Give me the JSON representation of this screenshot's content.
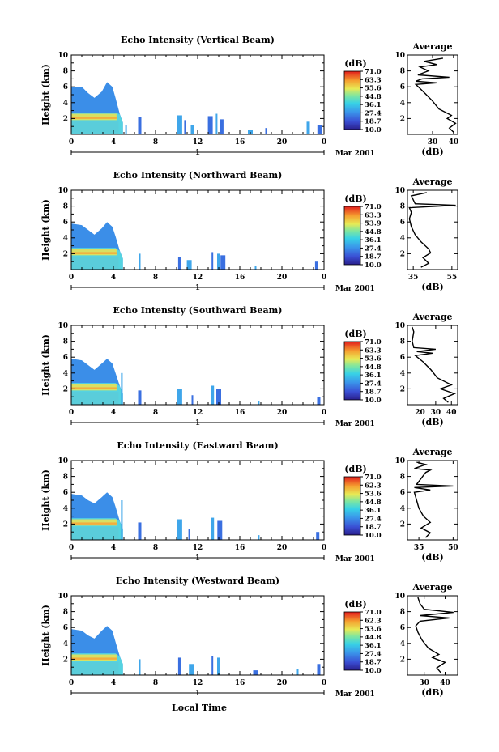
{
  "chart_data": [
    {
      "type": "heatmap",
      "title": "Echo Intensity (Vertical Beam)",
      "ylabel": "Height (km)",
      "xlim": [
        0,
        24
      ],
      "ylim": [
        0,
        10
      ],
      "x_ticks": [
        "0",
        "4",
        "8",
        "12",
        "16",
        "20",
        "0"
      ],
      "y_ticks": [
        "2",
        "4",
        "6",
        "8",
        "10"
      ],
      "date_label": "1",
      "month_label": "Mar 2001",
      "colorbar": {
        "unit": "(dB)",
        "levels": [
          "71.0",
          "63.3",
          "55.6",
          "44.8",
          "36.1",
          "27.4",
          "18.7",
          "10.0"
        ]
      },
      "echo_top_km": [
        {
          "t": 0.0,
          "top": 6.0
        },
        {
          "t": 1.0,
          "top": 6.0
        },
        {
          "t": 1.6,
          "top": 5.2
        },
        {
          "t": 2.2,
          "top": 4.6
        },
        {
          "t": 2.9,
          "top": 5.4
        },
        {
          "t": 3.4,
          "top": 6.6
        },
        {
          "t": 3.9,
          "top": 6.0
        },
        {
          "t": 4.2,
          "top": 4.6
        },
        {
          "t": 4.6,
          "top": 2.6
        },
        {
          "t": 4.9,
          "top": 1.5
        }
      ],
      "scattered_echoes": [
        {
          "t": 5.2,
          "top": 1.2
        },
        {
          "t": 6.5,
          "top": 2.2
        },
        {
          "t": 10.3,
          "top": 2.4
        },
        {
          "t": 10.8,
          "top": 1.8
        },
        {
          "t": 11.5,
          "top": 1.2
        },
        {
          "t": 13.2,
          "top": 2.3
        },
        {
          "t": 13.8,
          "top": 2.6
        },
        {
          "t": 14.3,
          "top": 1.9
        },
        {
          "t": 17.0,
          "top": 0.6
        },
        {
          "t": 18.5,
          "top": 0.8
        },
        {
          "t": 22.5,
          "top": 1.6
        },
        {
          "t": 23.6,
          "top": 1.2
        }
      ],
      "average_profile": {
        "title": "Average",
        "xlabel": "(dB)",
        "x_ticks": [
          "30",
          "40"
        ],
        "xlim": [
          18,
          42
        ],
        "y_ticks": [
          "2",
          "4",
          "6",
          "8",
          "10"
        ],
        "ylim": [
          0,
          10
        ],
        "points": [
          {
            "dB": 40,
            "h": 0.3
          },
          {
            "dB": 38,
            "h": 0.8
          },
          {
            "dB": 41,
            "h": 1.4
          },
          {
            "dB": 37,
            "h": 2.0
          },
          {
            "dB": 39,
            "h": 2.4
          },
          {
            "dB": 33,
            "h": 3.2
          },
          {
            "dB": 30,
            "h": 4.2
          },
          {
            "dB": 27,
            "h": 5.0
          },
          {
            "dB": 24,
            "h": 5.8
          },
          {
            "dB": 22,
            "h": 6.3
          },
          {
            "dB": 32,
            "h": 6.5
          },
          {
            "dB": 22,
            "h": 6.7
          },
          {
            "dB": 25,
            "h": 7.0
          },
          {
            "dB": 38,
            "h": 7.2
          },
          {
            "dB": 23,
            "h": 7.5
          },
          {
            "dB": 28,
            "h": 8.0
          },
          {
            "dB": 24,
            "h": 8.5
          },
          {
            "dB": 32,
            "h": 8.8
          },
          {
            "dB": 26,
            "h": 9.2
          },
          {
            "dB": 35,
            "h": 9.6
          }
        ]
      }
    },
    {
      "type": "heatmap",
      "title": "Echo Intensity (Northward Beam)",
      "ylabel": "Height (km)",
      "xlim": [
        0,
        24
      ],
      "ylim": [
        0,
        10
      ],
      "x_ticks": [
        "0",
        "4",
        "8",
        "12",
        "16",
        "20",
        "0"
      ],
      "y_ticks": [
        "2",
        "4",
        "6",
        "8",
        "10"
      ],
      "date_label": "1",
      "month_label": "Mar 2001",
      "colorbar": {
        "unit": "(dB)",
        "levels": [
          "71.0",
          "63.3",
          "53.9",
          "44.8",
          "36.1",
          "27.4",
          "18.7",
          "10.0"
        ]
      },
      "echo_top_km": [
        {
          "t": 0.0,
          "top": 5.8
        },
        {
          "t": 1.0,
          "top": 5.6
        },
        {
          "t": 1.6,
          "top": 5.0
        },
        {
          "t": 2.2,
          "top": 4.4
        },
        {
          "t": 2.9,
          "top": 5.2
        },
        {
          "t": 3.4,
          "top": 6.0
        },
        {
          "t": 3.9,
          "top": 5.4
        },
        {
          "t": 4.2,
          "top": 4.2
        },
        {
          "t": 4.6,
          "top": 2.4
        },
        {
          "t": 4.9,
          "top": 1.4
        }
      ],
      "scattered_echoes": [
        {
          "t": 6.5,
          "top": 2.0
        },
        {
          "t": 10.3,
          "top": 1.6
        },
        {
          "t": 11.2,
          "top": 1.2
        },
        {
          "t": 13.4,
          "top": 2.2
        },
        {
          "t": 14.0,
          "top": 2.0
        },
        {
          "t": 14.4,
          "top": 1.8
        },
        {
          "t": 17.5,
          "top": 0.5
        },
        {
          "t": 23.3,
          "top": 1.0
        }
      ],
      "average_profile": {
        "title": "Average",
        "xlabel": "(dB)",
        "x_ticks": [
          "35",
          "55"
        ],
        "xlim": [
          32,
          58
        ],
        "y_ticks": [
          "2",
          "4",
          "6",
          "8",
          "10"
        ],
        "ylim": [
          0,
          10
        ],
        "points": [
          {
            "dB": 39,
            "h": 0.3
          },
          {
            "dB": 43,
            "h": 0.8
          },
          {
            "dB": 40,
            "h": 1.5
          },
          {
            "dB": 44,
            "h": 2.1
          },
          {
            "dB": 43,
            "h": 2.6
          },
          {
            "dB": 39,
            "h": 3.5
          },
          {
            "dB": 36,
            "h": 4.4
          },
          {
            "dB": 34,
            "h": 5.4
          },
          {
            "dB": 33,
            "h": 6.4
          },
          {
            "dB": 34,
            "h": 7.2
          },
          {
            "dB": 33,
            "h": 7.8
          },
          {
            "dB": 57,
            "h": 8.1
          },
          {
            "dB": 36,
            "h": 8.3
          },
          {
            "dB": 34,
            "h": 9.3
          },
          {
            "dB": 42,
            "h": 9.7
          }
        ]
      }
    },
    {
      "type": "heatmap",
      "title": "Echo Intensity (Southward Beam)",
      "ylabel": "Height (km)",
      "xlim": [
        0,
        24
      ],
      "ylim": [
        0,
        10
      ],
      "x_ticks": [
        "0",
        "4",
        "8",
        "12",
        "16",
        "20",
        "0"
      ],
      "y_ticks": [
        "2",
        "4",
        "6",
        "8",
        "10"
      ],
      "date_label": "1",
      "month_label": "Mar 2001",
      "colorbar": {
        "unit": "(dB)",
        "levels": [
          "71.0",
          "63.3",
          "53.6",
          "44.8",
          "36.1",
          "27.4",
          "18.7",
          "10.0"
        ]
      },
      "echo_top_km": [
        {
          "t": 0.0,
          "top": 5.8
        },
        {
          "t": 1.0,
          "top": 5.6
        },
        {
          "t": 1.6,
          "top": 5.0
        },
        {
          "t": 2.2,
          "top": 4.4
        },
        {
          "t": 2.9,
          "top": 5.2
        },
        {
          "t": 3.4,
          "top": 5.8
        },
        {
          "t": 3.9,
          "top": 5.2
        },
        {
          "t": 4.2,
          "top": 4.0
        },
        {
          "t": 4.6,
          "top": 2.4
        },
        {
          "t": 4.9,
          "top": 1.4
        }
      ],
      "scattered_echoes": [
        {
          "t": 4.8,
          "top": 4.0
        },
        {
          "t": 6.5,
          "top": 1.8
        },
        {
          "t": 10.3,
          "top": 2.0
        },
        {
          "t": 11.5,
          "top": 1.2
        },
        {
          "t": 13.4,
          "top": 2.4
        },
        {
          "t": 14.0,
          "top": 2.0
        },
        {
          "t": 17.8,
          "top": 0.5
        },
        {
          "t": 23.5,
          "top": 1.0
        }
      ],
      "average_profile": {
        "title": "Average",
        "xlabel": "(dB)",
        "x_ticks": [
          "20",
          "30",
          "40"
        ],
        "xlim": [
          12,
          44
        ],
        "y_ticks": [
          "2",
          "4",
          "6",
          "8",
          "10"
        ],
        "ylim": [
          0,
          10
        ],
        "points": [
          {
            "dB": 38,
            "h": 0.3
          },
          {
            "dB": 35,
            "h": 0.8
          },
          {
            "dB": 42,
            "h": 1.4
          },
          {
            "dB": 33,
            "h": 2.0
          },
          {
            "dB": 40,
            "h": 2.5
          },
          {
            "dB": 31,
            "h": 3.4
          },
          {
            "dB": 27,
            "h": 4.4
          },
          {
            "dB": 22,
            "h": 5.4
          },
          {
            "dB": 17,
            "h": 6.2
          },
          {
            "dB": 28,
            "h": 6.5
          },
          {
            "dB": 18,
            "h": 6.7
          },
          {
            "dB": 30,
            "h": 7.0
          },
          {
            "dB": 16,
            "h": 7.2
          },
          {
            "dB": 15,
            "h": 8.0
          },
          {
            "dB": 16,
            "h": 9.2
          },
          {
            "dB": 15,
            "h": 9.8
          }
        ]
      }
    },
    {
      "type": "heatmap",
      "title": "Echo Intensity (Eastward Beam)",
      "ylabel": "Height (km)",
      "xlim": [
        0,
        24
      ],
      "ylim": [
        0,
        10
      ],
      "x_ticks": [
        "0",
        "4",
        "8",
        "12",
        "16",
        "20",
        "0"
      ],
      "y_ticks": [
        "2",
        "4",
        "6",
        "8",
        "10"
      ],
      "date_label": "1",
      "month_label": "Mar 2001",
      "colorbar": {
        "unit": "(dB)",
        "levels": [
          "71.0",
          "62.3",
          "53.6",
          "44.8",
          "36.1",
          "27.4",
          "18.7",
          "10.0"
        ]
      },
      "echo_top_km": [
        {
          "t": 0.0,
          "top": 5.8
        },
        {
          "t": 1.0,
          "top": 5.6
        },
        {
          "t": 1.6,
          "top": 5.0
        },
        {
          "t": 2.2,
          "top": 4.6
        },
        {
          "t": 2.9,
          "top": 5.4
        },
        {
          "t": 3.4,
          "top": 6.0
        },
        {
          "t": 3.9,
          "top": 5.4
        },
        {
          "t": 4.2,
          "top": 4.2
        },
        {
          "t": 4.6,
          "top": 2.4
        },
        {
          "t": 4.9,
          "top": 1.4
        }
      ],
      "scattered_echoes": [
        {
          "t": 4.8,
          "top": 5.0
        },
        {
          "t": 6.5,
          "top": 2.2
        },
        {
          "t": 10.3,
          "top": 2.6
        },
        {
          "t": 11.2,
          "top": 1.4
        },
        {
          "t": 13.4,
          "top": 2.8
        },
        {
          "t": 14.1,
          "top": 2.4
        },
        {
          "t": 17.8,
          "top": 0.6
        },
        {
          "t": 23.4,
          "top": 1.0
        }
      ],
      "average_profile": {
        "title": "Average",
        "xlabel": "(dB)",
        "x_ticks": [
          "35",
          "50"
        ],
        "xlim": [
          30,
          52
        ],
        "y_ticks": [
          "2",
          "4",
          "6",
          "8",
          "10"
        ],
        "ylim": [
          0,
          10
        ],
        "points": [
          {
            "dB": 38,
            "h": 0.3
          },
          {
            "dB": 40,
            "h": 0.9
          },
          {
            "dB": 36,
            "h": 1.5
          },
          {
            "dB": 40,
            "h": 2.2
          },
          {
            "dB": 37,
            "h": 3.0
          },
          {
            "dB": 35,
            "h": 4.0
          },
          {
            "dB": 34,
            "h": 5.0
          },
          {
            "dB": 33,
            "h": 6.0
          },
          {
            "dB": 40,
            "h": 6.3
          },
          {
            "dB": 33,
            "h": 6.6
          },
          {
            "dB": 50,
            "h": 6.8
          },
          {
            "dB": 34,
            "h": 7.0
          },
          {
            "dB": 38,
            "h": 8.5
          },
          {
            "dB": 40,
            "h": 8.8
          },
          {
            "dB": 33,
            "h": 9.0
          },
          {
            "dB": 38,
            "h": 9.5
          },
          {
            "dB": 34,
            "h": 9.8
          }
        ]
      }
    },
    {
      "type": "heatmap",
      "title": "Echo Intensity (Westward Beam)",
      "ylabel": "Height (km)",
      "xlabel": "Local Time",
      "xlim": [
        0,
        24
      ],
      "ylim": [
        0,
        10
      ],
      "x_ticks": [
        "0",
        "4",
        "8",
        "12",
        "16",
        "20",
        "0"
      ],
      "y_ticks": [
        "2",
        "4",
        "6",
        "8",
        "10"
      ],
      "date_label": "1",
      "month_label": "Mar 2001",
      "colorbar": {
        "unit": "(dB)",
        "levels": [
          "71.0",
          "62.3",
          "53.6",
          "44.8",
          "36.1",
          "27.4",
          "18.7",
          "10.0"
        ]
      },
      "echo_top_km": [
        {
          "t": 0.0,
          "top": 5.8
        },
        {
          "t": 1.0,
          "top": 5.6
        },
        {
          "t": 1.6,
          "top": 5.0
        },
        {
          "t": 2.2,
          "top": 4.6
        },
        {
          "t": 2.9,
          "top": 5.6
        },
        {
          "t": 3.4,
          "top": 6.2
        },
        {
          "t": 3.9,
          "top": 5.6
        },
        {
          "t": 4.2,
          "top": 4.2
        },
        {
          "t": 4.6,
          "top": 2.4
        },
        {
          "t": 4.9,
          "top": 1.4
        }
      ],
      "scattered_echoes": [
        {
          "t": 6.5,
          "top": 2.0
        },
        {
          "t": 10.3,
          "top": 2.2
        },
        {
          "t": 11.4,
          "top": 1.4
        },
        {
          "t": 13.4,
          "top": 2.4
        },
        {
          "t": 14.0,
          "top": 2.2
        },
        {
          "t": 17.5,
          "top": 0.6
        },
        {
          "t": 21.5,
          "top": 0.8
        },
        {
          "t": 23.5,
          "top": 1.4
        }
      ],
      "average_profile": {
        "title": "Average",
        "xlabel": "(dB)",
        "x_ticks": [
          "30",
          "40"
        ],
        "xlim": [
          22,
          46
        ],
        "y_ticks": [
          "2",
          "4",
          "6",
          "8",
          "10"
        ],
        "ylim": [
          0,
          10
        ],
        "points": [
          {
            "dB": 38,
            "h": 0.3
          },
          {
            "dB": 36,
            "h": 0.9
          },
          {
            "dB": 40,
            "h": 1.6
          },
          {
            "dB": 34,
            "h": 2.2
          },
          {
            "dB": 37,
            "h": 2.6
          },
          {
            "dB": 32,
            "h": 3.4
          },
          {
            "dB": 29,
            "h": 4.4
          },
          {
            "dB": 27,
            "h": 5.4
          },
          {
            "dB": 26,
            "h": 6.2
          },
          {
            "dB": 28,
            "h": 6.8
          },
          {
            "dB": 42,
            "h": 7.2
          },
          {
            "dB": 28,
            "h": 7.5
          },
          {
            "dB": 44,
            "h": 7.9
          },
          {
            "dB": 30,
            "h": 8.3
          },
          {
            "dB": 28,
            "h": 9.0
          },
          {
            "dB": 27,
            "h": 9.8
          }
        ]
      }
    }
  ]
}
